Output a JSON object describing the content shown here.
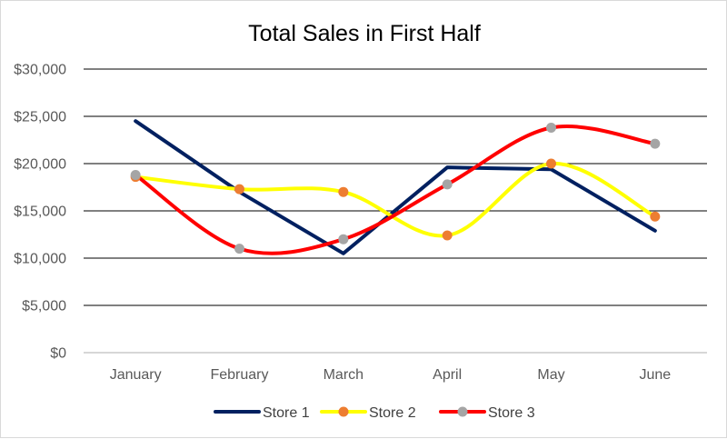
{
  "chart_data": {
    "type": "line",
    "title": "Total Sales in First Half",
    "categories": [
      "January",
      "February",
      "March",
      "April",
      "May",
      "June"
    ],
    "ylim": [
      0,
      30000
    ],
    "yticks": [
      0,
      5000,
      10000,
      15000,
      20000,
      25000,
      30000
    ],
    "ytick_labels": [
      "$0",
      "$5,000",
      "$10,000",
      "$15,000",
      "$20,000",
      "$25,000",
      "$30,000"
    ],
    "grid": true,
    "legend": "bottom",
    "series": [
      {
        "name": "Store 1",
        "values": [
          24500,
          17000,
          10500,
          19600,
          19400,
          12900
        ],
        "color": "#002060",
        "smooth": false,
        "marker": false
      },
      {
        "name": "Store 2",
        "values": [
          18600,
          17300,
          17000,
          12400,
          20000,
          14400
        ],
        "color": "#ffff00",
        "smooth": true,
        "marker": true,
        "marker_color": "#ed7d31"
      },
      {
        "name": "Store 3",
        "values": [
          18800,
          11000,
          12000,
          17800,
          23800,
          22100
        ],
        "color": "#ff0000",
        "smooth": true,
        "marker": true,
        "marker_color": "#a5a5a5"
      }
    ]
  }
}
